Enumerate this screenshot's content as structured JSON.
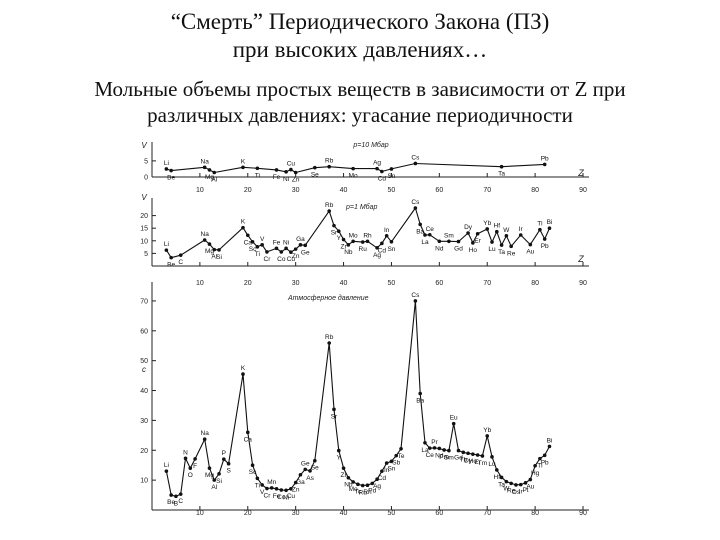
{
  "header": {
    "title_line1": "“Смерть” Периодического Закона (ПЗ)",
    "title_line2": "при высоких давлениях…",
    "subtitle_line1": "Мольные объемы простых веществ в зависимости от Z при",
    "subtitle_line2": "различных давлениях: угасание периодичности"
  },
  "chart_data": [
    {
      "type": "line",
      "title": "p=10 Мбар",
      "xlabel": "Z",
      "ylabel": "V",
      "xlim": [
        0,
        90
      ],
      "ylim": [
        0,
        9
      ],
      "x_ticks": [
        10,
        20,
        30,
        40,
        50,
        60,
        70,
        80,
        90
      ],
      "y_ticks": [
        0,
        5
      ],
      "y_tick_labels": [
        "0",
        "5"
      ],
      "points": [
        {
          "z": 3,
          "v": 2.5,
          "label": "Li"
        },
        {
          "z": 4,
          "v": 2.0,
          "label": "Be"
        },
        {
          "z": 11,
          "v": 3.0,
          "label": "Na"
        },
        {
          "z": 12,
          "v": 2.2,
          "label": "Mg"
        },
        {
          "z": 13,
          "v": 1.4,
          "label": "Al"
        },
        {
          "z": 19,
          "v": 3.0,
          "label": "K"
        },
        {
          "z": 22,
          "v": 2.7,
          "label": "Ti"
        },
        {
          "z": 26,
          "v": 2.2,
          "label": "Fe"
        },
        {
          "z": 28,
          "v": 1.6,
          "label": "Ni"
        },
        {
          "z": 29,
          "v": 2.3,
          "label": "Cu"
        },
        {
          "z": 30,
          "v": 1.4,
          "label": "Zn"
        },
        {
          "z": 34,
          "v": 2.9,
          "label": "Se"
        },
        {
          "z": 37,
          "v": 3.2,
          "label": "Rb"
        },
        {
          "z": 42,
          "v": 2.6,
          "label": "Mo"
        },
        {
          "z": 47,
          "v": 2.6,
          "label": "Ag"
        },
        {
          "z": 48,
          "v": 1.7,
          "label": "Cd"
        },
        {
          "z": 50,
          "v": 2.5,
          "label": "Sn"
        },
        {
          "z": 55,
          "v": 4.2,
          "label": "Cs"
        },
        {
          "z": 73,
          "v": 3.2,
          "label": "Ta"
        },
        {
          "z": 82,
          "v": 3.9,
          "label": "Pb"
        }
      ]
    },
    {
      "type": "line",
      "title": "p=1 Мбар",
      "xlabel": "Z",
      "ylabel": "V",
      "xlim": [
        0,
        90
      ],
      "ylim": [
        0,
        25
      ],
      "x_ticks": [
        10,
        20,
        30,
        40,
        50,
        60,
        70,
        80,
        90
      ],
      "y_ticks": [
        5,
        10,
        15,
        20
      ],
      "y_tick_labels": [
        "5",
        "10",
        "15",
        "20"
      ],
      "points": [
        {
          "z": 3,
          "v": 6.3,
          "label": "Li"
        },
        {
          "z": 4,
          "v": 3.3,
          "label": "Be"
        },
        {
          "z": 6,
          "v": 4.3,
          "label": "C"
        },
        {
          "z": 11,
          "v": 10.3,
          "label": "Na"
        },
        {
          "z": 12,
          "v": 8.7,
          "label": "Mg"
        },
        {
          "z": 13,
          "v": 6.5,
          "label": "Al"
        },
        {
          "z": 14,
          "v": 6.4,
          "label": "Si"
        },
        {
          "z": 19,
          "v": 15.2,
          "label": "K"
        },
        {
          "z": 20,
          "v": 12.2,
          "label": "Ca"
        },
        {
          "z": 21,
          "v": 9.6,
          "label": "Sc"
        },
        {
          "z": 22,
          "v": 7.6,
          "label": "Ti"
        },
        {
          "z": 23,
          "v": 8.4,
          "label": "V"
        },
        {
          "z": 24,
          "v": 5.6,
          "label": "Cr"
        },
        {
          "z": 26,
          "v": 7.0,
          "label": "Fe"
        },
        {
          "z": 27,
          "v": 5.6,
          "label": "Co"
        },
        {
          "z": 28,
          "v": 7.0,
          "label": "Ni"
        },
        {
          "z": 29,
          "v": 5.5,
          "label": "Cu"
        },
        {
          "z": 30,
          "v": 6.7,
          "label": "Zn"
        },
        {
          "z": 31,
          "v": 8.4,
          "label": "Ga"
        },
        {
          "z": 32,
          "v": 8.2,
          "label": "Ge"
        },
        {
          "z": 37,
          "v": 21.8,
          "label": "Rb"
        },
        {
          "z": 38,
          "v": 16.0,
          "label": "Sr"
        },
        {
          "z": 39,
          "v": 13.8,
          "label": "Y"
        },
        {
          "z": 40,
          "v": 10.5,
          "label": "Zr"
        },
        {
          "z": 41,
          "v": 8.4,
          "label": "Nb"
        },
        {
          "z": 42,
          "v": 9.8,
          "label": "Mo"
        },
        {
          "z": 44,
          "v": 9.5,
          "label": "Ru"
        },
        {
          "z": 45,
          "v": 9.8,
          "label": "Rh"
        },
        {
          "z": 47,
          "v": 7.2,
          "label": "Ag"
        },
        {
          "z": 48,
          "v": 9.0,
          "label": "Cd"
        },
        {
          "z": 49,
          "v": 12.0,
          "label": "In"
        },
        {
          "z": 50,
          "v": 9.6,
          "label": "Sn"
        },
        {
          "z": 55,
          "v": 23.0,
          "label": "Cs"
        },
        {
          "z": 56,
          "v": 16.5,
          "label": "Ba"
        },
        {
          "z": 57,
          "v": 12.3,
          "label": "La"
        },
        {
          "z": 58,
          "v": 12.4,
          "label": "Ce"
        },
        {
          "z": 60,
          "v": 9.8,
          "label": "Nd"
        },
        {
          "z": 62,
          "v": 9.8,
          "label": "Sm"
        },
        {
          "z": 64,
          "v": 9.7,
          "label": "Gd"
        },
        {
          "z": 66,
          "v": 13.1,
          "label": "Dy"
        },
        {
          "z": 67,
          "v": 9.2,
          "label": "Ho"
        },
        {
          "z": 68,
          "v": 12.8,
          "label": "Er"
        },
        {
          "z": 70,
          "v": 14.7,
          "label": "Yb"
        },
        {
          "z": 71,
          "v": 9.5,
          "label": "Lu"
        },
        {
          "z": 72,
          "v": 13.6,
          "label": "Hf"
        },
        {
          "z": 73,
          "v": 8.3,
          "label": "Ta"
        },
        {
          "z": 74,
          "v": 12.0,
          "label": "W"
        },
        {
          "z": 75,
          "v": 7.8,
          "label": "Re"
        },
        {
          "z": 77,
          "v": 12.3,
          "label": "Ir"
        },
        {
          "z": 79,
          "v": 8.5,
          "label": "Au"
        },
        {
          "z": 81,
          "v": 14.4,
          "label": "Tl"
        },
        {
          "z": 82,
          "v": 10.7,
          "label": "Pb"
        },
        {
          "z": 83,
          "v": 15.0,
          "label": "Bi"
        }
      ]
    },
    {
      "type": "line",
      "title": "Атмосферное давление",
      "xlabel": "",
      "ylabel": "c",
      "xlim": [
        0,
        90
      ],
      "ylim": [
        0,
        75
      ],
      "x_ticks": [
        10,
        20,
        30,
        40,
        50,
        60,
        70,
        80,
        90
      ],
      "y_ticks": [
        10,
        20,
        30,
        40,
        50,
        60,
        70
      ],
      "y_tick_labels": [
        "10",
        "20",
        "30",
        "40",
        "50",
        "60",
        "70"
      ],
      "points": [
        {
          "z": 3,
          "v": 13.0,
          "label": "Li"
        },
        {
          "z": 4,
          "v": 5.0,
          "label": "Be"
        },
        {
          "z": 5,
          "v": 4.6,
          "label": "B"
        },
        {
          "z": 6,
          "v": 5.3,
          "label": "C"
        },
        {
          "z": 7,
          "v": 17.3,
          "label": "N"
        },
        {
          "z": 8,
          "v": 14.0,
          "label": "O"
        },
        {
          "z": 9,
          "v": 17.1,
          "label": "F"
        },
        {
          "z": 11,
          "v": 23.7,
          "label": "Na"
        },
        {
          "z": 12,
          "v": 14.0,
          "label": "Mg"
        },
        {
          "z": 13,
          "v": 10.0,
          "label": "Al"
        },
        {
          "z": 14,
          "v": 12.1,
          "label": "Si"
        },
        {
          "z": 15,
          "v": 17.0,
          "label": "P"
        },
        {
          "z": 16,
          "v": 15.5,
          "label": "S"
        },
        {
          "z": 19,
          "v": 45.5,
          "label": "K"
        },
        {
          "z": 20,
          "v": 26.0,
          "label": "Ca"
        },
        {
          "z": 21,
          "v": 15.0,
          "label": "Sc"
        },
        {
          "z": 22,
          "v": 10.6,
          "label": "Ti"
        },
        {
          "z": 23,
          "v": 8.4,
          "label": "V"
        },
        {
          "z": 24,
          "v": 7.2,
          "label": "Cr"
        },
        {
          "z": 25,
          "v": 7.4,
          "label": "Mn"
        },
        {
          "z": 26,
          "v": 7.1,
          "label": "Fe"
        },
        {
          "z": 27,
          "v": 6.7,
          "label": "Co"
        },
        {
          "z": 28,
          "v": 6.6,
          "label": "Ni"
        },
        {
          "z": 29,
          "v": 7.1,
          "label": "Cu"
        },
        {
          "z": 30,
          "v": 9.2,
          "label": "Zn"
        },
        {
          "z": 31,
          "v": 11.8,
          "label": "Ga"
        },
        {
          "z": 32,
          "v": 13.6,
          "label": "Ge"
        },
        {
          "z": 33,
          "v": 13.1,
          "label": "As"
        },
        {
          "z": 34,
          "v": 16.5,
          "label": "Se"
        },
        {
          "z": 37,
          "v": 55.9,
          "label": "Rb"
        },
        {
          "z": 38,
          "v": 33.7,
          "label": "Sr"
        },
        {
          "z": 39,
          "v": 19.9,
          "label": "Y"
        },
        {
          "z": 40,
          "v": 14.0,
          "label": "Zr"
        },
        {
          "z": 41,
          "v": 10.8,
          "label": "Nb"
        },
        {
          "z": 42,
          "v": 9.4,
          "label": "Mo"
        },
        {
          "z": 43,
          "v": 8.6,
          "label": "Tc"
        },
        {
          "z": 44,
          "v": 8.2,
          "label": "Ru"
        },
        {
          "z": 45,
          "v": 8.3,
          "label": "Rh"
        },
        {
          "z": 46,
          "v": 8.9,
          "label": "Pd"
        },
        {
          "z": 47,
          "v": 10.3,
          "label": "Ag"
        },
        {
          "z": 48,
          "v": 13.0,
          "label": "Cd"
        },
        {
          "z": 49,
          "v": 15.7,
          "label": "In"
        },
        {
          "z": 50,
          "v": 16.3,
          "label": "Sn"
        },
        {
          "z": 51,
          "v": 18.2,
          "label": "Sb"
        },
        {
          "z": 52,
          "v": 20.5,
          "label": "Te"
        },
        {
          "z": 55,
          "v": 70.0,
          "label": "Cs"
        },
        {
          "z": 56,
          "v": 39.0,
          "label": "Ba"
        },
        {
          "z": 57,
          "v": 22.5,
          "label": "La"
        },
        {
          "z": 58,
          "v": 20.7,
          "label": "Ce"
        },
        {
          "z": 59,
          "v": 20.8,
          "label": "Pr"
        },
        {
          "z": 60,
          "v": 20.6,
          "label": "Nd"
        },
        {
          "z": 61,
          "v": 20.1,
          "label": "Pm"
        },
        {
          "z": 62,
          "v": 19.9,
          "label": "Sm"
        },
        {
          "z": 63,
          "v": 28.9,
          "label": "Eu"
        },
        {
          "z": 64,
          "v": 19.9,
          "label": "Gd"
        },
        {
          "z": 65,
          "v": 19.3,
          "label": "Tb"
        },
        {
          "z": 66,
          "v": 19.0,
          "label": "Dy"
        },
        {
          "z": 67,
          "v": 18.7,
          "label": "Ho"
        },
        {
          "z": 68,
          "v": 18.4,
          "label": "Er"
        },
        {
          "z": 69,
          "v": 18.1,
          "label": "Tm"
        },
        {
          "z": 70,
          "v": 24.8,
          "label": "Yb"
        },
        {
          "z": 71,
          "v": 17.8,
          "label": "Lu"
        },
        {
          "z": 72,
          "v": 13.4,
          "label": "Hf"
        },
        {
          "z": 73,
          "v": 10.9,
          "label": "Ta"
        },
        {
          "z": 74,
          "v": 9.5,
          "label": "W"
        },
        {
          "z": 75,
          "v": 8.9,
          "label": "Re"
        },
        {
          "z": 76,
          "v": 8.4,
          "label": "Os"
        },
        {
          "z": 77,
          "v": 8.5,
          "label": "Ir"
        },
        {
          "z": 78,
          "v": 9.1,
          "label": "Pt"
        },
        {
          "z": 79,
          "v": 10.2,
          "label": "Au"
        },
        {
          "z": 80,
          "v": 14.8,
          "label": "Hg"
        },
        {
          "z": 81,
          "v": 17.2,
          "label": "Tl"
        },
        {
          "z": 82,
          "v": 18.3,
          "label": "Pb"
        },
        {
          "z": 83,
          "v": 21.3,
          "label": "Bi"
        }
      ]
    }
  ]
}
